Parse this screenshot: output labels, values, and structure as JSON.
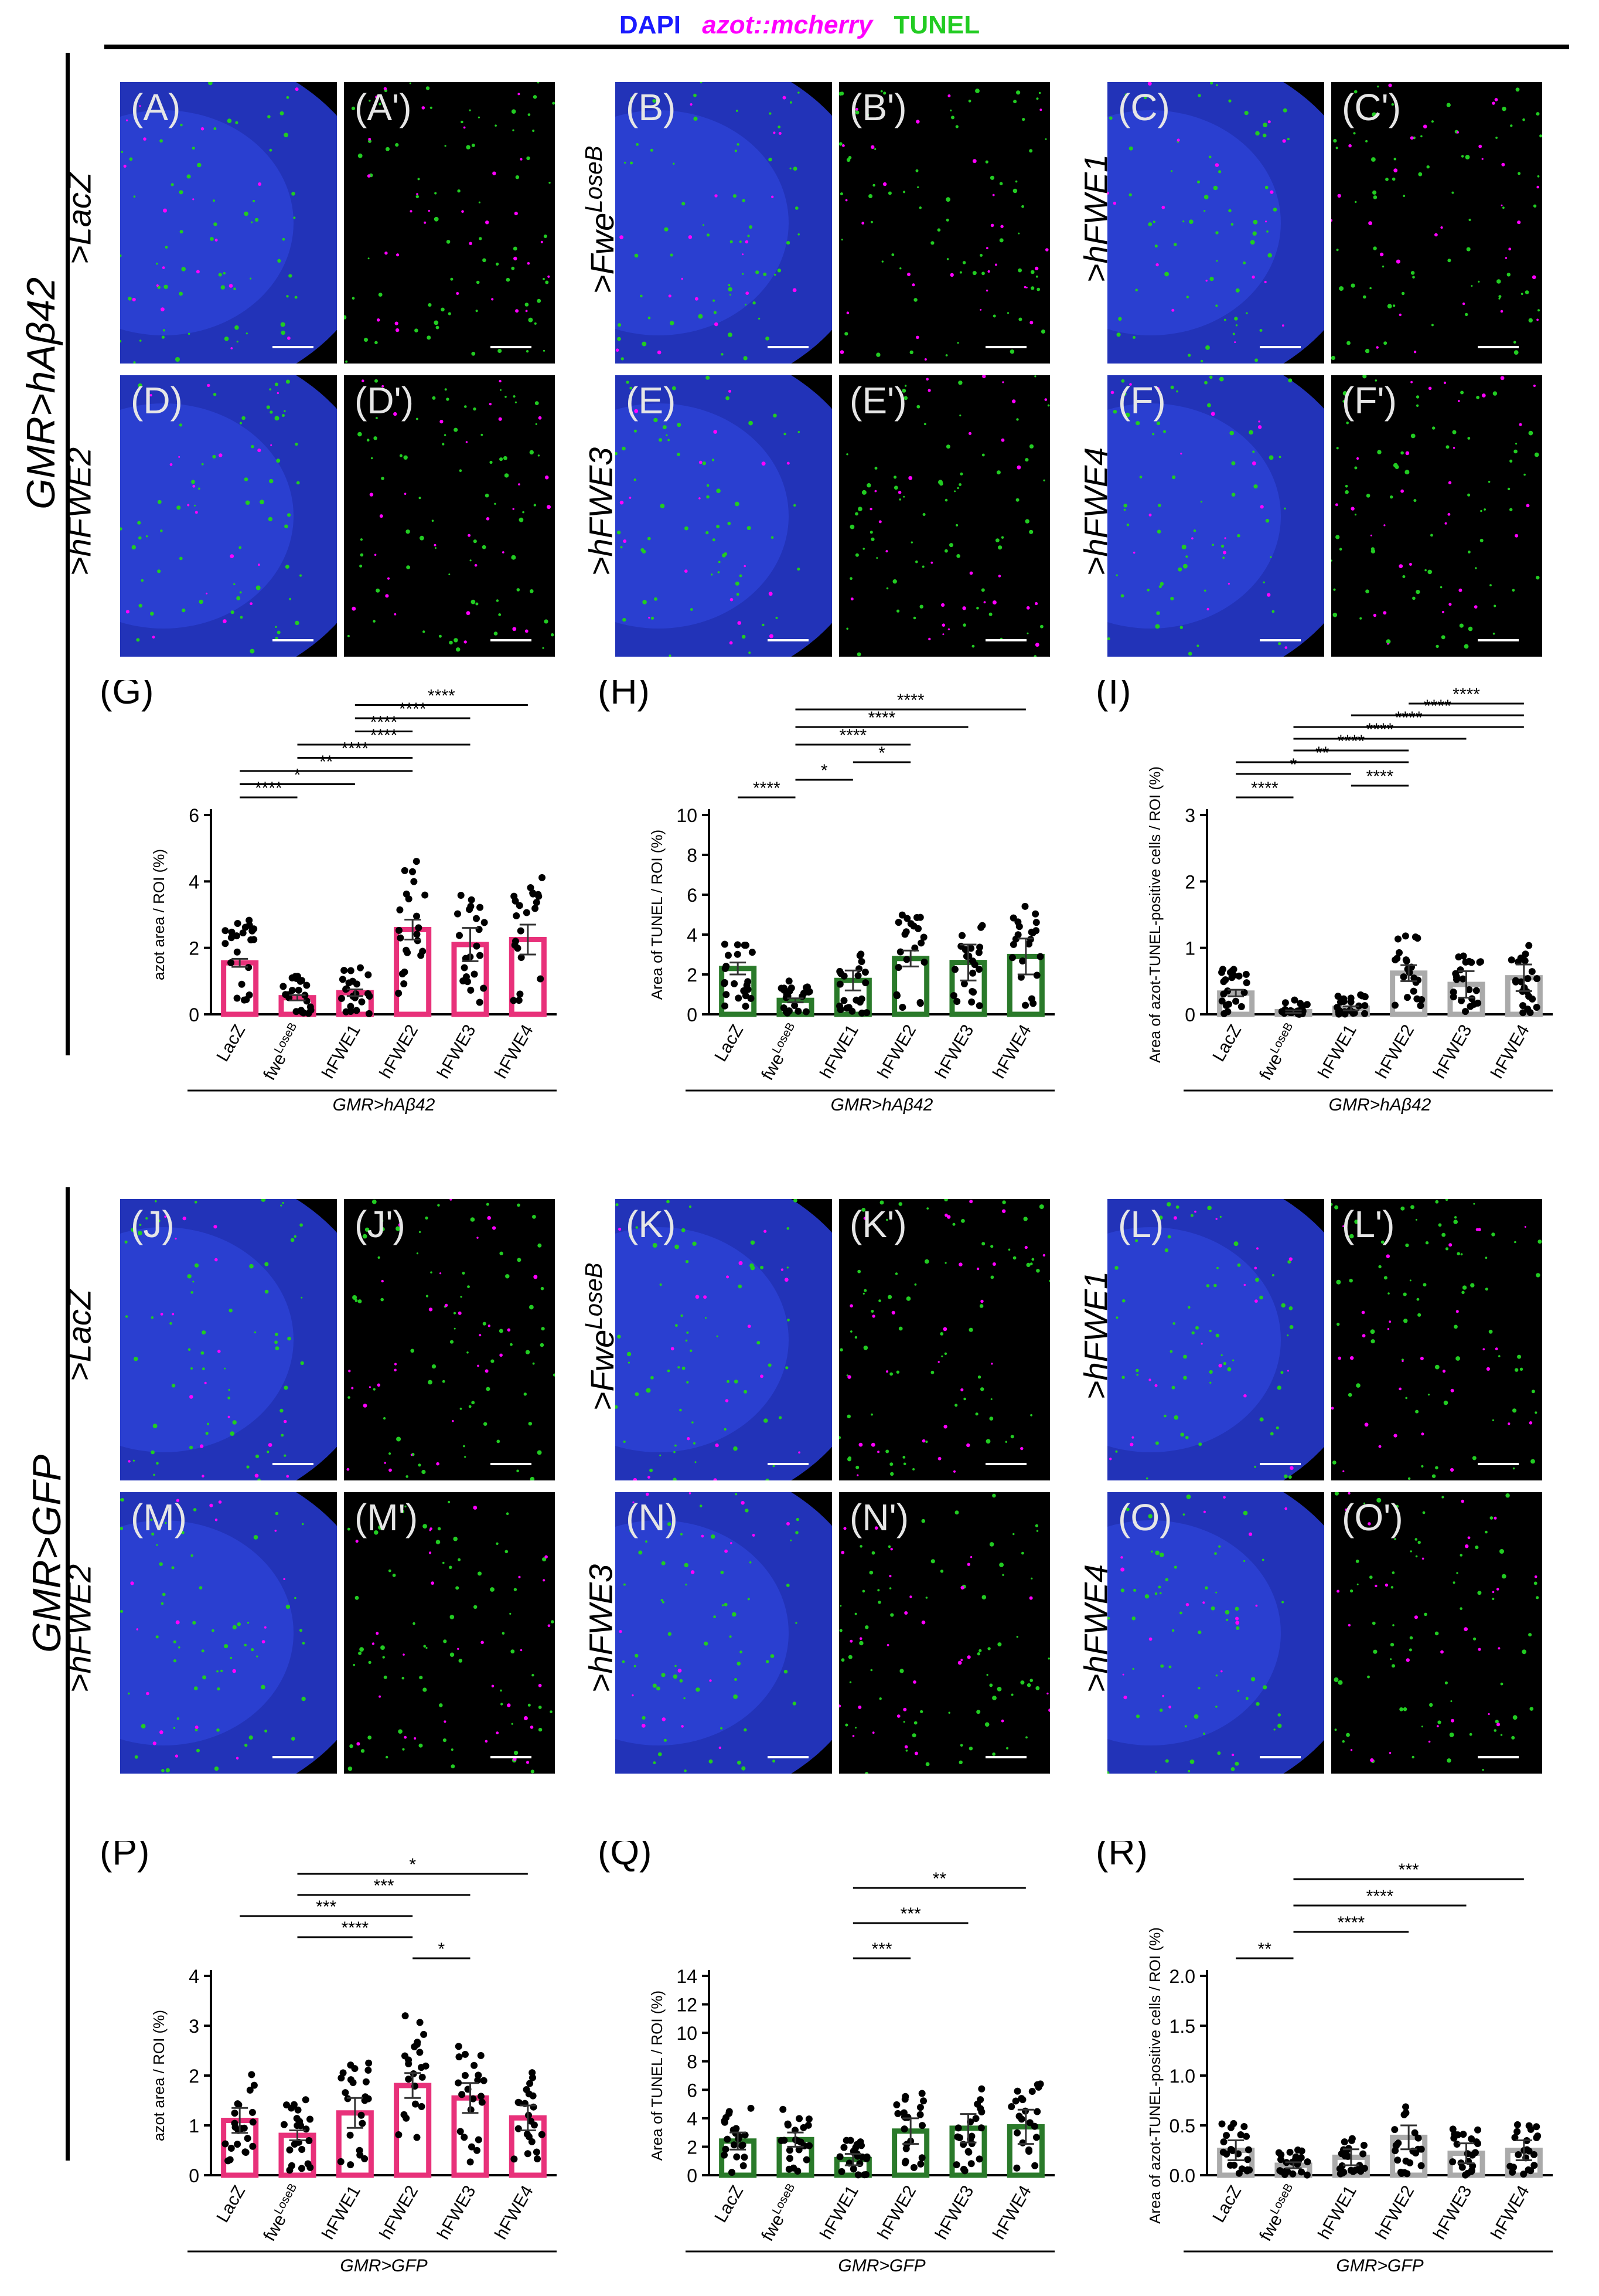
{
  "legend": {
    "dapi": "DAPI",
    "azot": "azot::mcherry",
    "tunel": "TUNEL",
    "dapi_color": "#1a1aff",
    "azot_color": "#ff00ff",
    "tunel_color": "#22cc22"
  },
  "groups": {
    "top": "GMR>hAβ42",
    "bottom": "GMR>GFP"
  },
  "panels": [
    {
      "label": "(A)",
      "type": "merge",
      "row": 0,
      "col": 0
    },
    {
      "label": "(A')",
      "type": "split",
      "row": 0,
      "col": 0
    },
    {
      "label": "(B)",
      "type": "merge",
      "row": 0,
      "col": 1
    },
    {
      "label": "(B')",
      "type": "split",
      "row": 0,
      "col": 1
    },
    {
      "label": "(C)",
      "type": "merge",
      "row": 0,
      "col": 2
    },
    {
      "label": "(C')",
      "type": "split",
      "row": 0,
      "col": 2
    },
    {
      "label": "(D)",
      "type": "merge",
      "row": 1,
      "col": 0
    },
    {
      "label": "(D')",
      "type": "split",
      "row": 1,
      "col": 0
    },
    {
      "label": "(E)",
      "type": "merge",
      "row": 1,
      "col": 1
    },
    {
      "label": "(E')",
      "type": "split",
      "row": 1,
      "col": 1
    },
    {
      "label": "(F)",
      "type": "merge",
      "row": 1,
      "col": 2
    },
    {
      "label": "(F')",
      "type": "split",
      "row": 1,
      "col": 2
    },
    {
      "label": "(J)",
      "type": "merge",
      "row": 2,
      "col": 0
    },
    {
      "label": "(J')",
      "type": "split",
      "row": 2,
      "col": 0
    },
    {
      "label": "(K)",
      "type": "merge",
      "row": 2,
      "col": 1
    },
    {
      "label": "(K')",
      "type": "split",
      "row": 2,
      "col": 1
    },
    {
      "label": "(L)",
      "type": "merge",
      "row": 2,
      "col": 2
    },
    {
      "label": "(L')",
      "type": "split",
      "row": 2,
      "col": 2
    },
    {
      "label": "(M)",
      "type": "merge",
      "row": 3,
      "col": 0
    },
    {
      "label": "(M')",
      "type": "split",
      "row": 3,
      "col": 0
    },
    {
      "label": "(N)",
      "type": "merge",
      "row": 3,
      "col": 1
    },
    {
      "label": "(N')",
      "type": "split",
      "row": 3,
      "col": 1
    },
    {
      "label": "(O)",
      "type": "merge",
      "row": 3,
      "col": 2
    },
    {
      "label": "(O')",
      "type": "split",
      "row": 3,
      "col": 2
    }
  ],
  "genotypes": [
    {
      "text": ">LacZ",
      "sup": ""
    },
    {
      "text": ">Fwe",
      "sup": "LoseB"
    },
    {
      "text": ">hFWE1",
      "sup": ""
    },
    {
      "text": ">hFWE2",
      "sup": ""
    },
    {
      "text": ">hFWE3",
      "sup": ""
    },
    {
      "text": ">hFWE4",
      "sup": ""
    },
    {
      "text": ">LacZ",
      "sup": ""
    },
    {
      "text": ">Fwe",
      "sup": "LoseB"
    },
    {
      "text": ">hFWE1",
      "sup": ""
    },
    {
      "text": ">hFWE2",
      "sup": ""
    },
    {
      "text": ">hFWE3",
      "sup": ""
    },
    {
      "text": ">hFWE4",
      "sup": ""
    }
  ],
  "chart_data": [
    {
      "id": "G",
      "label": "(G)",
      "type": "bar",
      "ylabel": "azot area / ROI (%)",
      "ylim": [
        0,
        6
      ],
      "yticks": [
        0,
        2,
        4,
        6
      ],
      "color": "#e8317a",
      "xgroup": "GMR>hAβ42",
      "categories": [
        "LacZ",
        "fwe^LoseB",
        "hFWE1",
        "hFWE2",
        "hFWE3",
        "hFWE4"
      ],
      "values": [
        1.55,
        0.5,
        0.65,
        2.55,
        2.1,
        2.25
      ],
      "errors": [
        0.12,
        0.08,
        0.1,
        0.3,
        0.5,
        0.45
      ],
      "sig": [
        {
          "a": 0,
          "b": 1,
          "t": "****"
        },
        {
          "a": 0,
          "b": 2,
          "t": "*"
        },
        {
          "a": 0,
          "b": 3,
          "t": "**"
        },
        {
          "a": 1,
          "b": 3,
          "t": "****"
        },
        {
          "a": 1,
          "b": 4,
          "t": "****"
        },
        {
          "a": 2,
          "b": 3,
          "t": "****"
        },
        {
          "a": 2,
          "b": 4,
          "t": "****"
        },
        {
          "a": 2,
          "b": 5,
          "t": "****"
        }
      ]
    },
    {
      "id": "H",
      "label": "(H)",
      "type": "bar",
      "ylabel": "Area of TUNEL / ROI (%)",
      "ylim": [
        0,
        10
      ],
      "yticks": [
        0,
        2,
        4,
        6,
        8,
        10
      ],
      "color": "#2a7a2a",
      "xgroup": "GMR>hAβ42",
      "categories": [
        "LacZ",
        "fwe^LoseB",
        "hFWE1",
        "hFWE2",
        "hFWE3",
        "hFWE4"
      ],
      "values": [
        2.3,
        0.7,
        1.7,
        2.8,
        2.6,
        2.9
      ],
      "errors": [
        0.3,
        0.1,
        0.5,
        0.4,
        0.9,
        0.9
      ],
      "sig": [
        {
          "a": 0,
          "b": 1,
          "t": "****"
        },
        {
          "a": 1,
          "b": 2,
          "t": "*"
        },
        {
          "a": 2,
          "b": 3,
          "t": "*"
        },
        {
          "a": 1,
          "b": 3,
          "t": "****"
        },
        {
          "a": 1,
          "b": 4,
          "t": "****"
        },
        {
          "a": 1,
          "b": 5,
          "t": "****"
        }
      ]
    },
    {
      "id": "I",
      "label": "(I)",
      "type": "bar",
      "ylabel": "Area of azot-TUNEL-positive cells / ROI (%)",
      "ylim": [
        0,
        3
      ],
      "yticks": [
        0,
        1,
        2,
        3
      ],
      "color": "#aaaaaa",
      "xgroup": "GMR>hAβ42",
      "categories": [
        "LacZ",
        "fwe^LoseB",
        "hFWE1",
        "hFWE2",
        "hFWE3",
        "hFWE4"
      ],
      "values": [
        0.32,
        0.04,
        0.09,
        0.62,
        0.45,
        0.55
      ],
      "errors": [
        0.05,
        0.02,
        0.03,
        0.12,
        0.2,
        0.2
      ],
      "sig": [
        {
          "a": 0,
          "b": 1,
          "t": "****"
        },
        {
          "a": 2,
          "b": 3,
          "t": "****"
        },
        {
          "a": 0,
          "b": 2,
          "t": "*"
        },
        {
          "a": 0,
          "b": 3,
          "t": "**"
        },
        {
          "a": 1,
          "b": 3,
          "t": "****"
        },
        {
          "a": 1,
          "b": 4,
          "t": "****"
        },
        {
          "a": 1,
          "b": 5,
          "t": "****"
        },
        {
          "a": 2,
          "b": 5,
          "t": "****"
        },
        {
          "a": 3,
          "b": 5,
          "t": "****"
        }
      ]
    },
    {
      "id": "P",
      "label": "(P)",
      "type": "bar",
      "ylabel": "azot area / ROI (%)",
      "ylim": [
        0,
        4
      ],
      "yticks": [
        0,
        1,
        2,
        3,
        4
      ],
      "color": "#e8317a",
      "xgroup": "GMR>GFP",
      "categories": [
        "LacZ",
        "fwe^LoseB",
        "hFWE1",
        "hFWE2",
        "hFWE3",
        "hFWE4"
      ],
      "values": [
        1.1,
        0.8,
        1.25,
        1.8,
        1.55,
        1.15
      ],
      "errors": [
        0.25,
        0.1,
        0.3,
        0.25,
        0.3,
        0.25
      ],
      "sig": [
        {
          "a": 3,
          "b": 4,
          "t": "*"
        },
        {
          "a": 1,
          "b": 3,
          "t": "****"
        },
        {
          "a": 0,
          "b": 3,
          "t": "***"
        },
        {
          "a": 1,
          "b": 4,
          "t": "***"
        },
        {
          "a": 1,
          "b": 5,
          "t": "*"
        }
      ]
    },
    {
      "id": "Q",
      "label": "(Q)",
      "type": "bar",
      "ylabel": "Area of TUNEL / ROI (%)",
      "ylim": [
        0,
        14
      ],
      "yticks": [
        0,
        2,
        4,
        6,
        8,
        10,
        12,
        14
      ],
      "color": "#2a7a2a",
      "xgroup": "GMR>GFP",
      "categories": [
        "LacZ",
        "fwe^LoseB",
        "hFWE1",
        "hFWE2",
        "hFWE3",
        "hFWE4"
      ],
      "values": [
        2.4,
        2.5,
        1.1,
        3.1,
        3.3,
        3.4
      ],
      "errors": [
        0.6,
        0.5,
        0.4,
        0.9,
        1.0,
        1.2
      ],
      "sig": [
        {
          "a": 2,
          "b": 3,
          "t": "***"
        },
        {
          "a": 2,
          "b": 4,
          "t": "***"
        },
        {
          "a": 2,
          "b": 5,
          "t": "**"
        }
      ]
    },
    {
      "id": "R",
      "label": "(R)",
      "type": "bar",
      "ylabel": "Area of azot-TUNEL-positive cells / ROI (%)",
      "ylim": [
        0,
        2.0
      ],
      "yticks": [
        0.0,
        0.5,
        1.0,
        1.5,
        2.0
      ],
      "color": "#aaaaaa",
      "xgroup": "GMR>GFP",
      "categories": [
        "LacZ",
        "fwe^LoseB",
        "hFWE1",
        "hFWE2",
        "hFWE3",
        "hFWE4"
      ],
      "values": [
        0.25,
        0.1,
        0.18,
        0.38,
        0.22,
        0.25
      ],
      "errors": [
        0.1,
        0.03,
        0.08,
        0.12,
        0.1,
        0.1
      ],
      "sig": [
        {
          "a": 0,
          "b": 1,
          "t": "**"
        },
        {
          "a": 1,
          "b": 3,
          "t": "****"
        },
        {
          "a": 1,
          "b": 4,
          "t": "****"
        },
        {
          "a": 1,
          "b": 5,
          "t": "***"
        }
      ]
    }
  ]
}
